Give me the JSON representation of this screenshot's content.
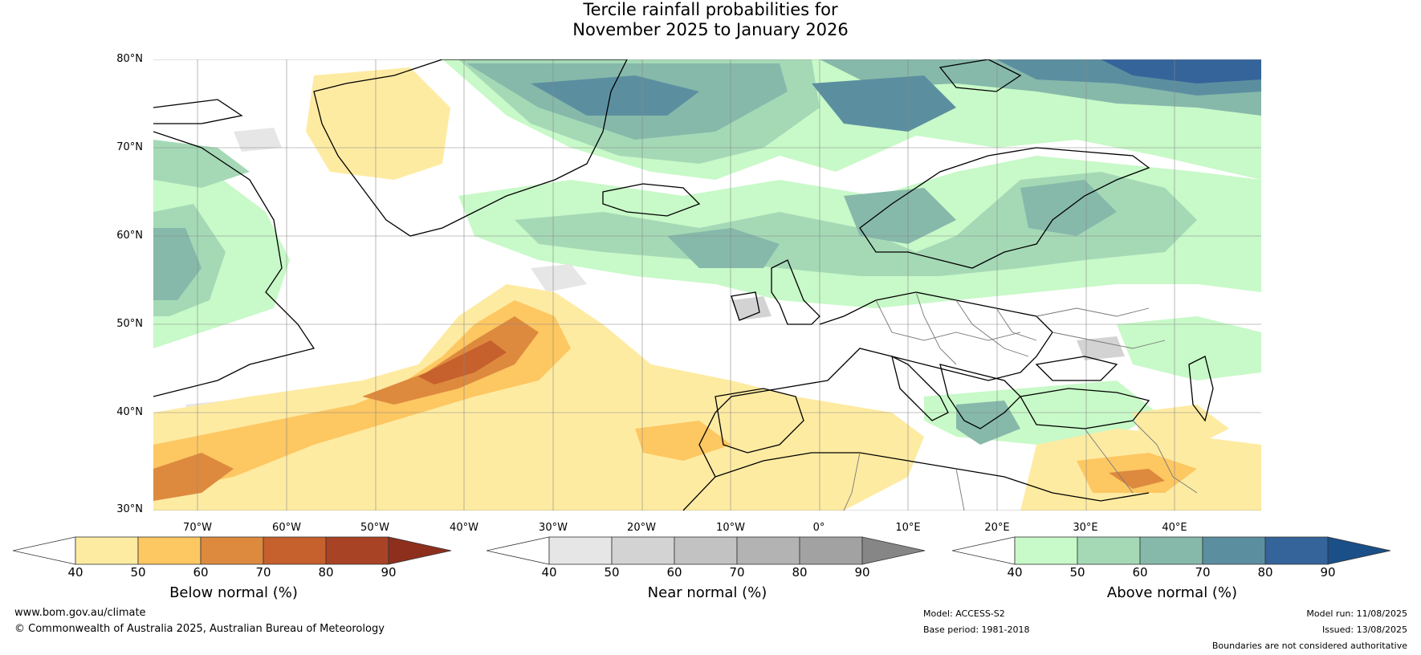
{
  "title": {
    "line1": "Tercile rainfall probabilities for",
    "line2": "November 2025 to January 2026"
  },
  "map": {
    "lat_labels": [
      "80°N",
      "70°N",
      "60°N",
      "50°N",
      "40°N",
      "30°N"
    ],
    "lon_labels": [
      "70°W",
      "60°W",
      "50°W",
      "40°W",
      "30°W",
      "20°W",
      "10°W",
      "0°",
      "10°E",
      "20°E",
      "30°E",
      "40°E"
    ]
  },
  "colorbars": {
    "below": {
      "label": "Below normal (%)",
      "ticks": [
        "40",
        "50",
        "60",
        "70",
        "80",
        "90"
      ],
      "colors": [
        "#ffffff",
        "#feeba2",
        "#fdc762",
        "#dd8a3e",
        "#c6602c",
        "#a84325",
        "#8e2f1e"
      ]
    },
    "near": {
      "label": "Near normal (%)",
      "ticks": [
        "40",
        "50",
        "60",
        "70",
        "80",
        "90"
      ],
      "colors": [
        "#ffffff",
        "#e6e6e6",
        "#d3d3d3",
        "#c2c2c2",
        "#b3b3b3",
        "#a2a2a2",
        "#868686"
      ]
    },
    "above": {
      "label": "Above normal (%)",
      "ticks": [
        "40",
        "50",
        "60",
        "70",
        "80",
        "90"
      ],
      "colors": [
        "#ffffff",
        "#c8f9c8",
        "#a5d9b6",
        "#86b9aa",
        "#5b8fa0",
        "#35649a",
        "#1a4f87"
      ]
    }
  },
  "footer": {
    "website": "www.bom.gov.au/climate",
    "copyright": "© Commonwealth of Australia 2025, Australian Bureau of Meteorology",
    "model": "Model: ACCESS-S2",
    "base_period": "Base period: 1981-2018",
    "model_run": "Model run: 11/08/2025",
    "issued": "Issued: 13/08/2025",
    "disclaimer": "Boundaries are not considered authoritative"
  }
}
